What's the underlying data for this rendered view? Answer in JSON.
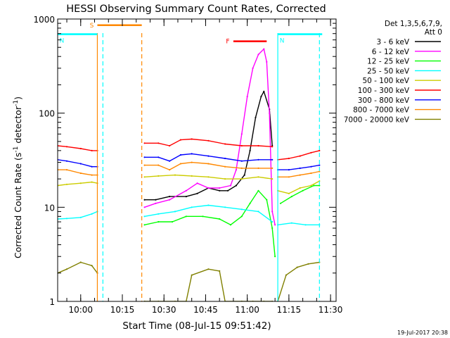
{
  "chart_data": {
    "type": "line",
    "title": "HESSI Observing Summary Count Rates, Corrected",
    "xlabel": "Start Time (08-Jul-15 09:51:42)",
    "ylabel": "Corrected Count Rate (s⁻¹ detector⁻¹)",
    "ylabel_main": "Corrected Count Rate (s",
    "ylabel_sup1": "-1",
    "ylabel_mid": " detector",
    "ylabel_sup2": "-1",
    "ylabel_end": ")",
    "y_scale": "log",
    "ylim": [
      1,
      1000
    ],
    "xlim": [
      "09:51:42",
      "11:32:00"
    ],
    "x_ticks": [
      "10:00",
      "10:15",
      "10:30",
      "10:45",
      "11:00",
      "11:15",
      "11:30"
    ],
    "y_ticks": [
      "1",
      "10",
      "100",
      "1000"
    ],
    "legend": {
      "position": "right",
      "header": [
        "Det 1,3,5,6,7,9,",
        "Att 0"
      ],
      "entries": [
        {
          "label": "3 - 6 keV",
          "color": "#000000"
        },
        {
          "label": "6 - 12 keV",
          "color": "#ff00ff"
        },
        {
          "label": "12 - 25 keV",
          "color": "#00ff00"
        },
        {
          "label": "25 - 50 keV",
          "color": "#00ffff"
        },
        {
          "label": "50 - 100 keV",
          "color": "#cccc00"
        },
        {
          "label": "100 - 300 keV",
          "color": "#ff0000"
        },
        {
          "label": "300 - 800 keV",
          "color": "#0000ff"
        },
        {
          "label": "800 - 7000 keV",
          "color": "#ff8800"
        },
        {
          "label": "7000 - 20000 keV",
          "color": "#808000"
        }
      ]
    },
    "flags": [
      {
        "label": "S",
        "color": "#ff8800",
        "start": "10:06",
        "end": "10:22",
        "y": 860
      },
      {
        "label": "N",
        "color": "#00ffff",
        "start": "09:51:42",
        "end": "10:06",
        "y": 690
      },
      {
        "label": "N",
        "color": "#00ffff",
        "start": "11:11",
        "end": "11:27",
        "y": 690
      },
      {
        "label": "F",
        "color": "#ff0000",
        "start": "10:55",
        "end": "11:07",
        "y": 580
      }
    ],
    "vertical_markers": [
      {
        "time": "10:06",
        "color": "#ff8800",
        "style": "solid"
      },
      {
        "time": "10:08",
        "color": "#00ffff",
        "style": "dashed"
      },
      {
        "time": "10:22",
        "color": "#ff8800",
        "style": "dashed"
      },
      {
        "time": "11:11",
        "color": "#00ffff",
        "style": "solid"
      },
      {
        "time": "11:26",
        "color": "#00ffff",
        "style": "dashed"
      }
    ],
    "series": [
      {
        "name": "3 - 6 keV",
        "color": "#000000",
        "segments": [
          {
            "x": [
              "10:23",
              "10:27",
              "10:32",
              "10:38",
              "10:42",
              "10:46",
              "10:50",
              "10:53",
              "10:56",
              "10:59",
              "11:01",
              "11:03",
              "11:05",
              "11:06",
              "11:08",
              "11:09"
            ],
            "y": [
              12,
              12,
              13,
              13,
              14,
              16,
              15,
              15,
              17,
              22,
              40,
              90,
              150,
              170,
              110,
              45
            ]
          }
        ]
      },
      {
        "name": "6 - 12 keV",
        "color": "#ff00ff",
        "segments": [
          {
            "x": [
              "10:23",
              "10:27",
              "10:32",
              "10:38",
              "10:42",
              "10:46",
              "10:50",
              "10:54",
              "10:56",
              "10:58",
              "11:00",
              "11:02",
              "11:04",
              "11:06",
              "11:07",
              "11:08",
              "11:09",
              "11:10"
            ],
            "y": [
              10,
              11,
              12,
              15,
              18,
              16,
              16,
              17,
              25,
              60,
              150,
              300,
              420,
              480,
              350,
              100,
              9,
              6.5
            ]
          }
        ]
      },
      {
        "name": "12 - 25 keV",
        "color": "#00ff00",
        "segments": [
          {
            "x": [
              "10:23",
              "10:28",
              "10:33",
              "10:38",
              "10:44",
              "10:50",
              "10:54",
              "10:58",
              "11:01",
              "11:04",
              "11:07",
              "11:09",
              "11:10"
            ],
            "y": [
              6.5,
              7,
              7,
              8,
              8,
              7.5,
              6.5,
              8,
              11,
              15,
              12,
              6,
              3
            ]
          },
          {
            "x": [
              "11:12",
              "11:16",
              "11:20",
              "11:24",
              "11:26"
            ],
            "y": [
              11,
              13,
              15,
              17,
              17
            ]
          }
        ]
      },
      {
        "name": "25 - 50 keV",
        "color": "#00ffff",
        "segments": [
          {
            "x": [
              "09:51:42",
              "09:55",
              "10:00",
              "10:04",
              "10:06"
            ],
            "y": [
              7.5,
              7.6,
              7.8,
              8.5,
              9
            ]
          },
          {
            "x": [
              "10:23",
              "10:28",
              "10:34",
              "10:40",
              "10:46",
              "10:52",
              "10:58",
              "11:04",
              "11:09"
            ],
            "y": [
              8,
              8.5,
              9,
              10,
              10.5,
              10,
              9.5,
              9,
              7
            ]
          },
          {
            "x": [
              "11:11",
              "11:16",
              "11:21",
              "11:26"
            ],
            "y": [
              6.5,
              6.8,
              6.5,
              6.5
            ]
          }
        ]
      },
      {
        "name": "50 - 100 keV",
        "color": "#cccc00",
        "segments": [
          {
            "x": [
              "09:51:42",
              "09:55",
              "10:00",
              "10:04",
              "10:06"
            ],
            "y": [
              17,
              17.5,
              18,
              18.5,
              18
            ]
          },
          {
            "x": [
              "10:23",
              "10:28",
              "10:34",
              "10:40",
              "10:46",
              "10:52",
              "10:58",
              "11:04",
              "11:09"
            ],
            "y": [
              21,
              21.5,
              22,
              21.5,
              21,
              20,
              20,
              21,
              20
            ]
          },
          {
            "x": [
              "11:11",
              "11:15",
              "11:19",
              "11:23",
              "11:26"
            ],
            "y": [
              15,
              14,
              16,
              17,
              19
            ]
          }
        ]
      },
      {
        "name": "100 - 300 keV",
        "color": "#ff0000",
        "segments": [
          {
            "x": [
              "09:51:42",
              "09:55",
              "10:00",
              "10:04",
              "10:06"
            ],
            "y": [
              45,
              44,
              42,
              40,
              40
            ]
          },
          {
            "x": [
              "10:23",
              "10:28",
              "10:32",
              "10:36",
              "10:40",
              "10:46",
              "10:52",
              "10:58",
              "11:04",
              "11:09"
            ],
            "y": [
              48,
              48,
              45,
              52,
              53,
              51,
              47,
              45,
              45,
              44
            ]
          },
          {
            "x": [
              "11:11",
              "11:15",
              "11:19",
              "11:23",
              "11:26"
            ],
            "y": [
              32,
              33,
              35,
              38,
              40
            ]
          }
        ]
      },
      {
        "name": "300 - 800 keV",
        "color": "#0000ff",
        "segments": [
          {
            "x": [
              "09:51:42",
              "09:55",
              "10:00",
              "10:04",
              "10:06"
            ],
            "y": [
              32,
              31,
              29,
              27,
              27
            ]
          },
          {
            "x": [
              "10:23",
              "10:28",
              "10:32",
              "10:36",
              "10:40",
              "10:46",
              "10:52",
              "10:58",
              "11:04",
              "11:09"
            ],
            "y": [
              34,
              34,
              31,
              36,
              37,
              35,
              33,
              31,
              32,
              32
            ]
          },
          {
            "x": [
              "11:11",
              "11:15",
              "11:19",
              "11:23",
              "11:26"
            ],
            "y": [
              25,
              25,
              26,
              27,
              28
            ]
          }
        ]
      },
      {
        "name": "800 - 7000 keV",
        "color": "#ff8800",
        "segments": [
          {
            "x": [
              "09:51:42",
              "09:55",
              "10:00",
              "10:04",
              "10:06"
            ],
            "y": [
              25,
              25,
              23,
              22,
              22
            ]
          },
          {
            "x": [
              "10:23",
              "10:28",
              "10:32",
              "10:36",
              "10:40",
              "10:46",
              "10:52",
              "10:58",
              "11:04",
              "11:09"
            ],
            "y": [
              28,
              28,
              25,
              29,
              30,
              29,
              27,
              26,
              26,
              26
            ]
          },
          {
            "x": [
              "11:11",
              "11:15",
              "11:19",
              "11:23",
              "11:26"
            ],
            "y": [
              21,
              21,
              22,
              23,
              24
            ]
          }
        ]
      },
      {
        "name": "7000 - 20000 keV",
        "color": "#808000",
        "segments": [
          {
            "x": [
              "09:51:42",
              "09:55",
              "10:00",
              "10:04",
              "10:06"
            ],
            "y": [
              2,
              2.2,
              2.6,
              2.4,
              2
            ]
          },
          {
            "x": [
              "10:23",
              "10:28",
              "10:34",
              "10:38",
              "10:40",
              "10:46",
              "10:50",
              "10:52",
              "10:58",
              "11:02",
              "11:06",
              "11:09"
            ],
            "y": [
              1,
              1,
              1,
              1,
              1.9,
              2.2,
              2.1,
              1,
              1,
              1,
              1,
              1
            ]
          },
          {
            "x": [
              "11:11",
              "11:14",
              "11:18",
              "11:22",
              "11:26"
            ],
            "y": [
              1,
              1.9,
              2.3,
              2.5,
              2.6
            ]
          }
        ]
      }
    ],
    "timestamp": "19-Jul-2017 20:38"
  }
}
